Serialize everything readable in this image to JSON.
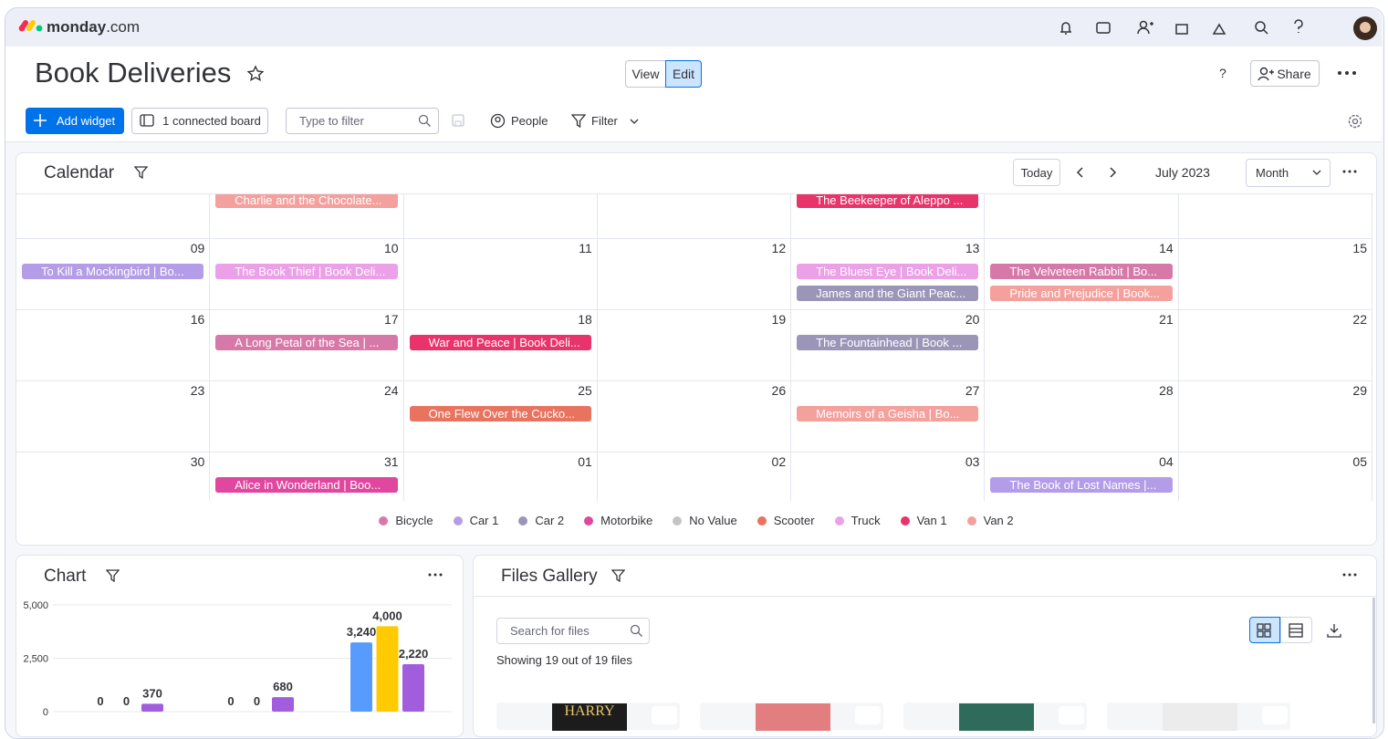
{
  "topbar": {
    "brand": "monday",
    "brand_suffix": ".com"
  },
  "header": {
    "title": "Book Deliveries",
    "view": "View",
    "edit": "Edit",
    "help": "?",
    "share": "Share"
  },
  "toolbar": {
    "add_widget": "Add widget",
    "connected": "1 connected board",
    "filter_placeholder": "Type to filter",
    "people": "People",
    "filter": "Filter"
  },
  "calendar": {
    "title": "Calendar",
    "today": "Today",
    "month_label": "July 2023",
    "mode": "Month",
    "weeks": [
      {
        "cells": [
          {
            "events": []
          },
          {
            "events": [
              {
                "text": "Charlie and the Chocolate...",
                "color": "#f4a09c"
              }
            ]
          },
          {
            "events": []
          },
          {
            "events": []
          },
          {
            "events": [
              {
                "text": "The Beekeeper of Aleppo ...",
                "color": "#e8336b"
              }
            ]
          },
          {
            "events": []
          },
          {
            "events": []
          }
        ]
      },
      {
        "cells": [
          {
            "day": "09",
            "events": [
              {
                "text": "To Kill a Mockingbird | Bo...",
                "color": "#b49de8"
              }
            ]
          },
          {
            "day": "10",
            "events": [
              {
                "text": "The Book Thief | Book Deli...",
                "color": "#eba0e8"
              }
            ]
          },
          {
            "day": "11",
            "events": []
          },
          {
            "day": "12",
            "events": []
          },
          {
            "day": "13",
            "events": [
              {
                "text": "The Bluest Eye | Book Deli...",
                "color": "#eba0e8"
              },
              {
                "text": "James and the Giant Peac...",
                "color": "#9b95b8"
              }
            ]
          },
          {
            "day": "14",
            "events": [
              {
                "text": "The Velveteen Rabbit | Bo...",
                "color": "#d679a8"
              },
              {
                "text": "Pride and Prejudice | Book...",
                "color": "#f4a09c"
              }
            ]
          },
          {
            "day": "15",
            "events": []
          }
        ]
      },
      {
        "cells": [
          {
            "day": "16",
            "events": []
          },
          {
            "day": "17",
            "events": [
              {
                "text": "A Long Petal of the Sea | ...",
                "color": "#d679a8"
              }
            ]
          },
          {
            "day": "18",
            "events": [
              {
                "text": "War and Peace | Book Deli...",
                "color": "#e8336b"
              }
            ]
          },
          {
            "day": "19",
            "events": []
          },
          {
            "day": "20",
            "events": [
              {
                "text": "The Fountainhead | Book ...",
                "color": "#9b95b8"
              }
            ]
          },
          {
            "day": "21",
            "events": []
          },
          {
            "day": "22",
            "events": []
          }
        ]
      },
      {
        "cells": [
          {
            "day": "23",
            "events": []
          },
          {
            "day": "24",
            "events": []
          },
          {
            "day": "25",
            "events": [
              {
                "text": "One Flew Over the Cucko...",
                "color": "#e8735f"
              }
            ]
          },
          {
            "day": "26",
            "events": []
          },
          {
            "day": "27",
            "events": [
              {
                "text": "Memoirs of a Geisha | Bo...",
                "color": "#f4a09c"
              }
            ]
          },
          {
            "day": "28",
            "events": []
          },
          {
            "day": "29",
            "events": []
          }
        ]
      },
      {
        "cells": [
          {
            "day": "30",
            "events": []
          },
          {
            "day": "31",
            "events": [
              {
                "text": "Alice in Wonderland | Boo...",
                "color": "#e0479e"
              }
            ]
          },
          {
            "day": "01",
            "events": []
          },
          {
            "day": "02",
            "events": []
          },
          {
            "day": "03",
            "events": []
          },
          {
            "day": "04",
            "events": [
              {
                "text": "The Book of Lost Names |...",
                "color": "#b49de8"
              }
            ]
          },
          {
            "day": "05",
            "events": []
          }
        ]
      }
    ],
    "legend": [
      {
        "name": "Bicycle",
        "color": "#d679a8"
      },
      {
        "name": "Car 1",
        "color": "#b49de8"
      },
      {
        "name": "Car 2",
        "color": "#9b95b8"
      },
      {
        "name": "Motorbike",
        "color": "#e0479e"
      },
      {
        "name": "No Value",
        "color": "#c4c4c4"
      },
      {
        "name": "Scooter",
        "color": "#e8735f"
      },
      {
        "name": "Truck",
        "color": "#eba0e8"
      },
      {
        "name": "Van 1",
        "color": "#e8336b"
      },
      {
        "name": "Van 2",
        "color": "#f4a09c"
      }
    ]
  },
  "chart": {
    "type": "bar",
    "title": "Chart",
    "ylim": [
      0,
      5000
    ],
    "yticks": [
      0,
      {
        "value": 2500,
        "label": "2,500"
      },
      {
        "value": 5000,
        "label": "5,000"
      }
    ],
    "grid": true,
    "categories": [
      null,
      null,
      null
    ],
    "series": [
      {
        "color": "#579bfc",
        "values": [
          0,
          0,
          3240
        ],
        "value_labels": [
          "0",
          "0",
          "3,240"
        ]
      },
      {
        "color": "#ffcb00",
        "values": [
          0,
          0,
          4000
        ],
        "value_labels": [
          "0",
          "0",
          "4,000"
        ]
      },
      {
        "color": "#a25ddc",
        "values": [
          370,
          680,
          2220
        ],
        "value_labels": [
          "370",
          "680",
          "2,220"
        ]
      }
    ]
  },
  "files": {
    "title": "Files Gallery",
    "search_placeholder": "Search for files",
    "count_text": "Showing 19 out of 19 files",
    "thumbnails": [
      {
        "text": "HARRY",
        "color": "#1c1c1c"
      },
      {
        "color": "#e27d80"
      },
      {
        "color": "#2f6b5a"
      },
      {
        "color": "#ececec"
      }
    ]
  }
}
